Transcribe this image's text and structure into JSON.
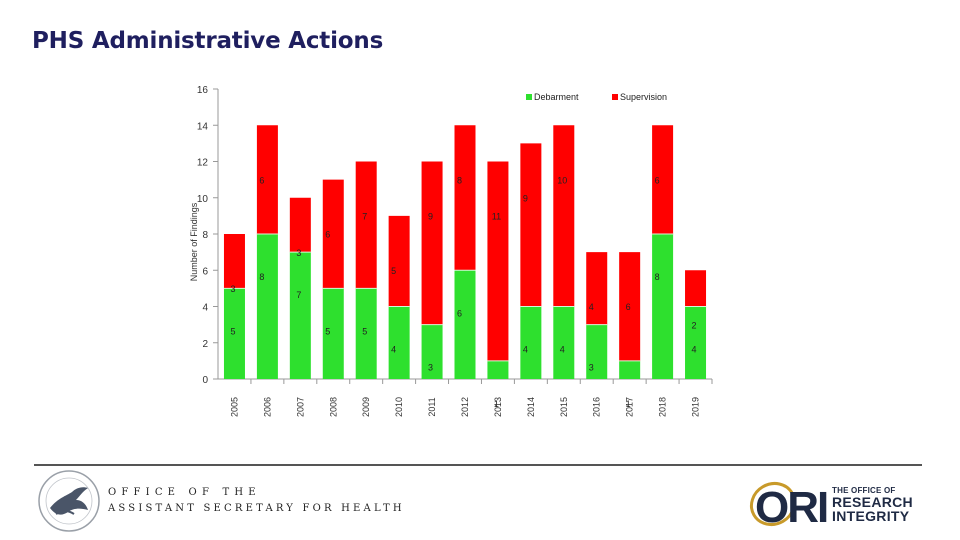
{
  "slide": {
    "title": "PHS Administrative Actions"
  },
  "chart_data": {
    "type": "bar",
    "stacked": true,
    "title": "",
    "xlabel": "",
    "ylabel": "Number of Findings",
    "ylim": [
      0,
      16
    ],
    "yticks": [
      0,
      2,
      4,
      6,
      8,
      10,
      12,
      14,
      16
    ],
    "categories": [
      "2005",
      "2006",
      "2007",
      "2008",
      "2009",
      "2010",
      "2011",
      "2012",
      "2013",
      "2014",
      "2015",
      "2016",
      "2017",
      "2018",
      "2019"
    ],
    "series": [
      {
        "name": "Debarment",
        "color": "#2ee02e",
        "values": [
          5,
          8,
          7,
          5,
          5,
          4,
          3,
          6,
          1,
          4,
          4,
          3,
          1,
          8,
          4
        ]
      },
      {
        "name": "Supervision",
        "color": "#ff0000",
        "values": [
          3,
          6,
          3,
          6,
          7,
          5,
          9,
          8,
          11,
          9,
          10,
          4,
          6,
          6,
          2
        ]
      }
    ],
    "legend": {
      "position": "top-right",
      "entries": [
        "Debarment",
        "Supervision"
      ]
    }
  },
  "footer": {
    "office_line1": "OFFICE OF THE",
    "office_line2": "ASSISTANT SECRETARY FOR HEALTH",
    "ori_line1": "THE OFFICE OF",
    "ori_line2": "RESEARCH",
    "ori_line3": "INTEGRITY",
    "ori_mark": "ORI"
  }
}
